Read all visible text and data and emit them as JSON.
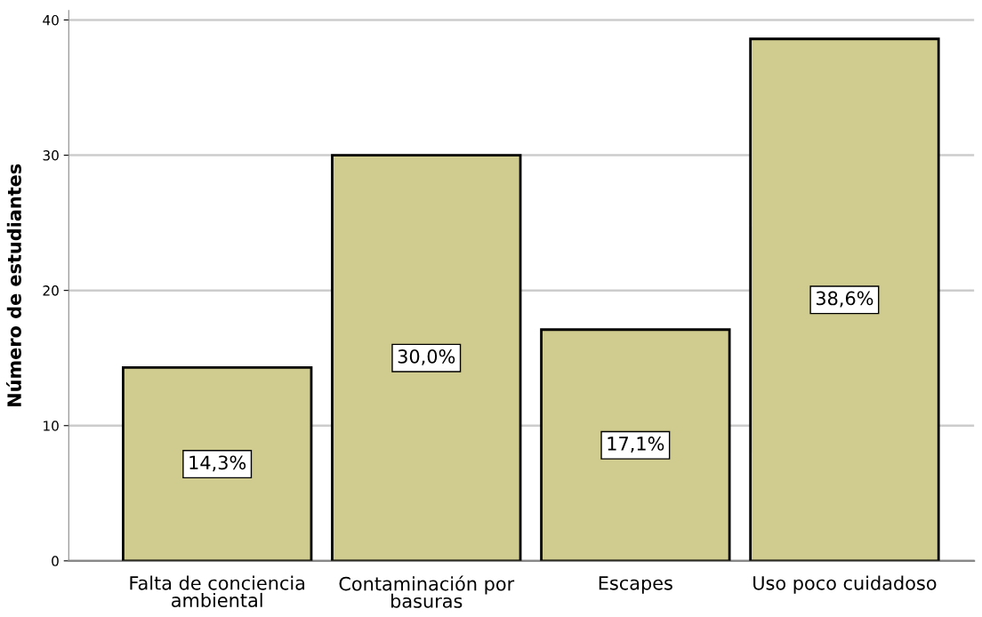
{
  "chart_data": {
    "type": "bar",
    "ylabel": "Número de estudiantes",
    "categories": [
      "Falta de conciencia\nambiental",
      "Contaminación por\nbasuras",
      "Escapes",
      "Uso poco cuidadoso"
    ],
    "values": [
      14.3,
      30.0,
      17.1,
      38.6
    ],
    "value_labels": [
      "14,3%",
      "30,0%",
      "17,1%",
      "38,6%"
    ],
    "color": "#d0cb8e",
    "ylim": [
      0,
      40.7
    ],
    "yticks": [
      0,
      10,
      20,
      30,
      40
    ],
    "grid": "y"
  }
}
